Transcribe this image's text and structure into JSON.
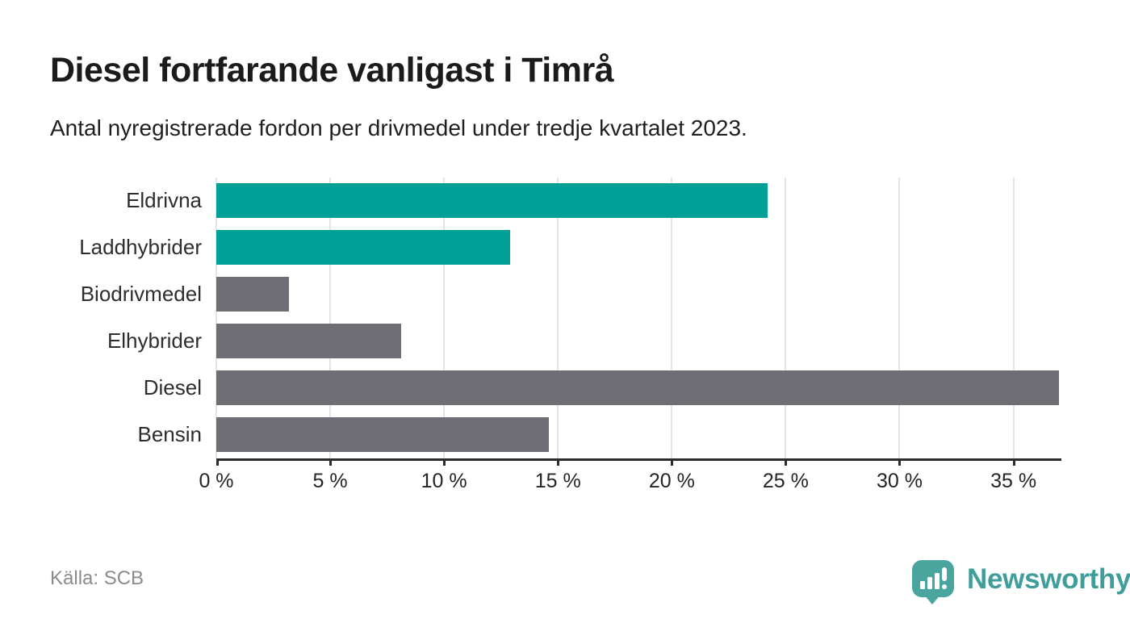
{
  "header": {
    "title": "Diesel fortfarande vanligast i Timrå",
    "subtitle": "Antal nyregistrerade fordon per drivmedel under tredje kvartalet 2023."
  },
  "footer": {
    "source": "Källa: SCB",
    "brand_name": "Newsworthy"
  },
  "colors": {
    "highlight_bar": "#00a096",
    "default_bar": "#6e6e74",
    "gridline": "#e4e4e4",
    "axis": "#2b2b2b",
    "logo_bubble": "#4aa59f",
    "logo_text": "#3f9e99"
  },
  "chart_data": {
    "type": "bar",
    "orientation": "horizontal",
    "title": "Diesel fortfarande vanligast i Timrå",
    "subtitle": "Antal nyregistrerade fordon per drivmedel under tredje kvartalet 2023.",
    "categories": [
      "Eldrivna",
      "Laddhybrider",
      "Biodrivmedel",
      "Elhybrider",
      "Diesel",
      "Bensin"
    ],
    "values": [
      24.2,
      12.9,
      3.2,
      8.1,
      37.0,
      14.6
    ],
    "value_unit": "%",
    "bar_roles": [
      "highlight",
      "highlight",
      "default",
      "default",
      "default",
      "default"
    ],
    "xlabel": "",
    "ylabel": "",
    "xlim": [
      0,
      37.0
    ],
    "xticks": [
      0,
      5,
      10,
      15,
      20,
      25,
      30,
      35
    ],
    "xtick_labels": [
      "0 %",
      "5 %",
      "10 %",
      "15 %",
      "20 %",
      "25 %",
      "30 %",
      "35 %"
    ],
    "grid": true,
    "legend": false
  }
}
